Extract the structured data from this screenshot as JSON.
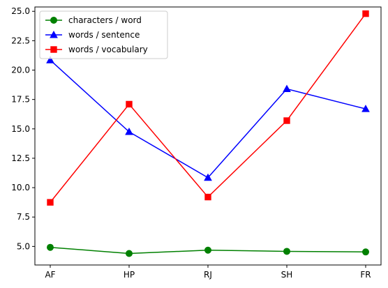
{
  "chart_data": {
    "type": "line",
    "categories": [
      "AF",
      "HP",
      "RJ",
      "SH",
      "FR"
    ],
    "series": [
      {
        "name": "characters / word",
        "values": [
          4.92,
          4.4,
          4.68,
          4.58,
          4.53
        ],
        "color": "#008000",
        "marker": "circle"
      },
      {
        "name": "words / sentence",
        "values": [
          20.85,
          14.75,
          10.85,
          18.4,
          16.7
        ],
        "color": "#0000ff",
        "marker": "triangle"
      },
      {
        "name": "words / vocabulary",
        "values": [
          8.75,
          17.1,
          9.2,
          15.7,
          24.8
        ],
        "color": "#ff0000",
        "marker": "square"
      }
    ],
    "ylim": [
      3.42,
      25.37
    ],
    "yticks": [
      5.0,
      7.5,
      10.0,
      12.5,
      15.0,
      17.5,
      20.0,
      22.5,
      25.0
    ],
    "ytick_labels": [
      "5.0",
      "7.5",
      "10.0",
      "12.5",
      "15.0",
      "17.5",
      "20.0",
      "22.5",
      "25.0"
    ],
    "grid": false,
    "legend_position": "upper-left",
    "title": "",
    "xlabel": "",
    "ylabel": ""
  }
}
